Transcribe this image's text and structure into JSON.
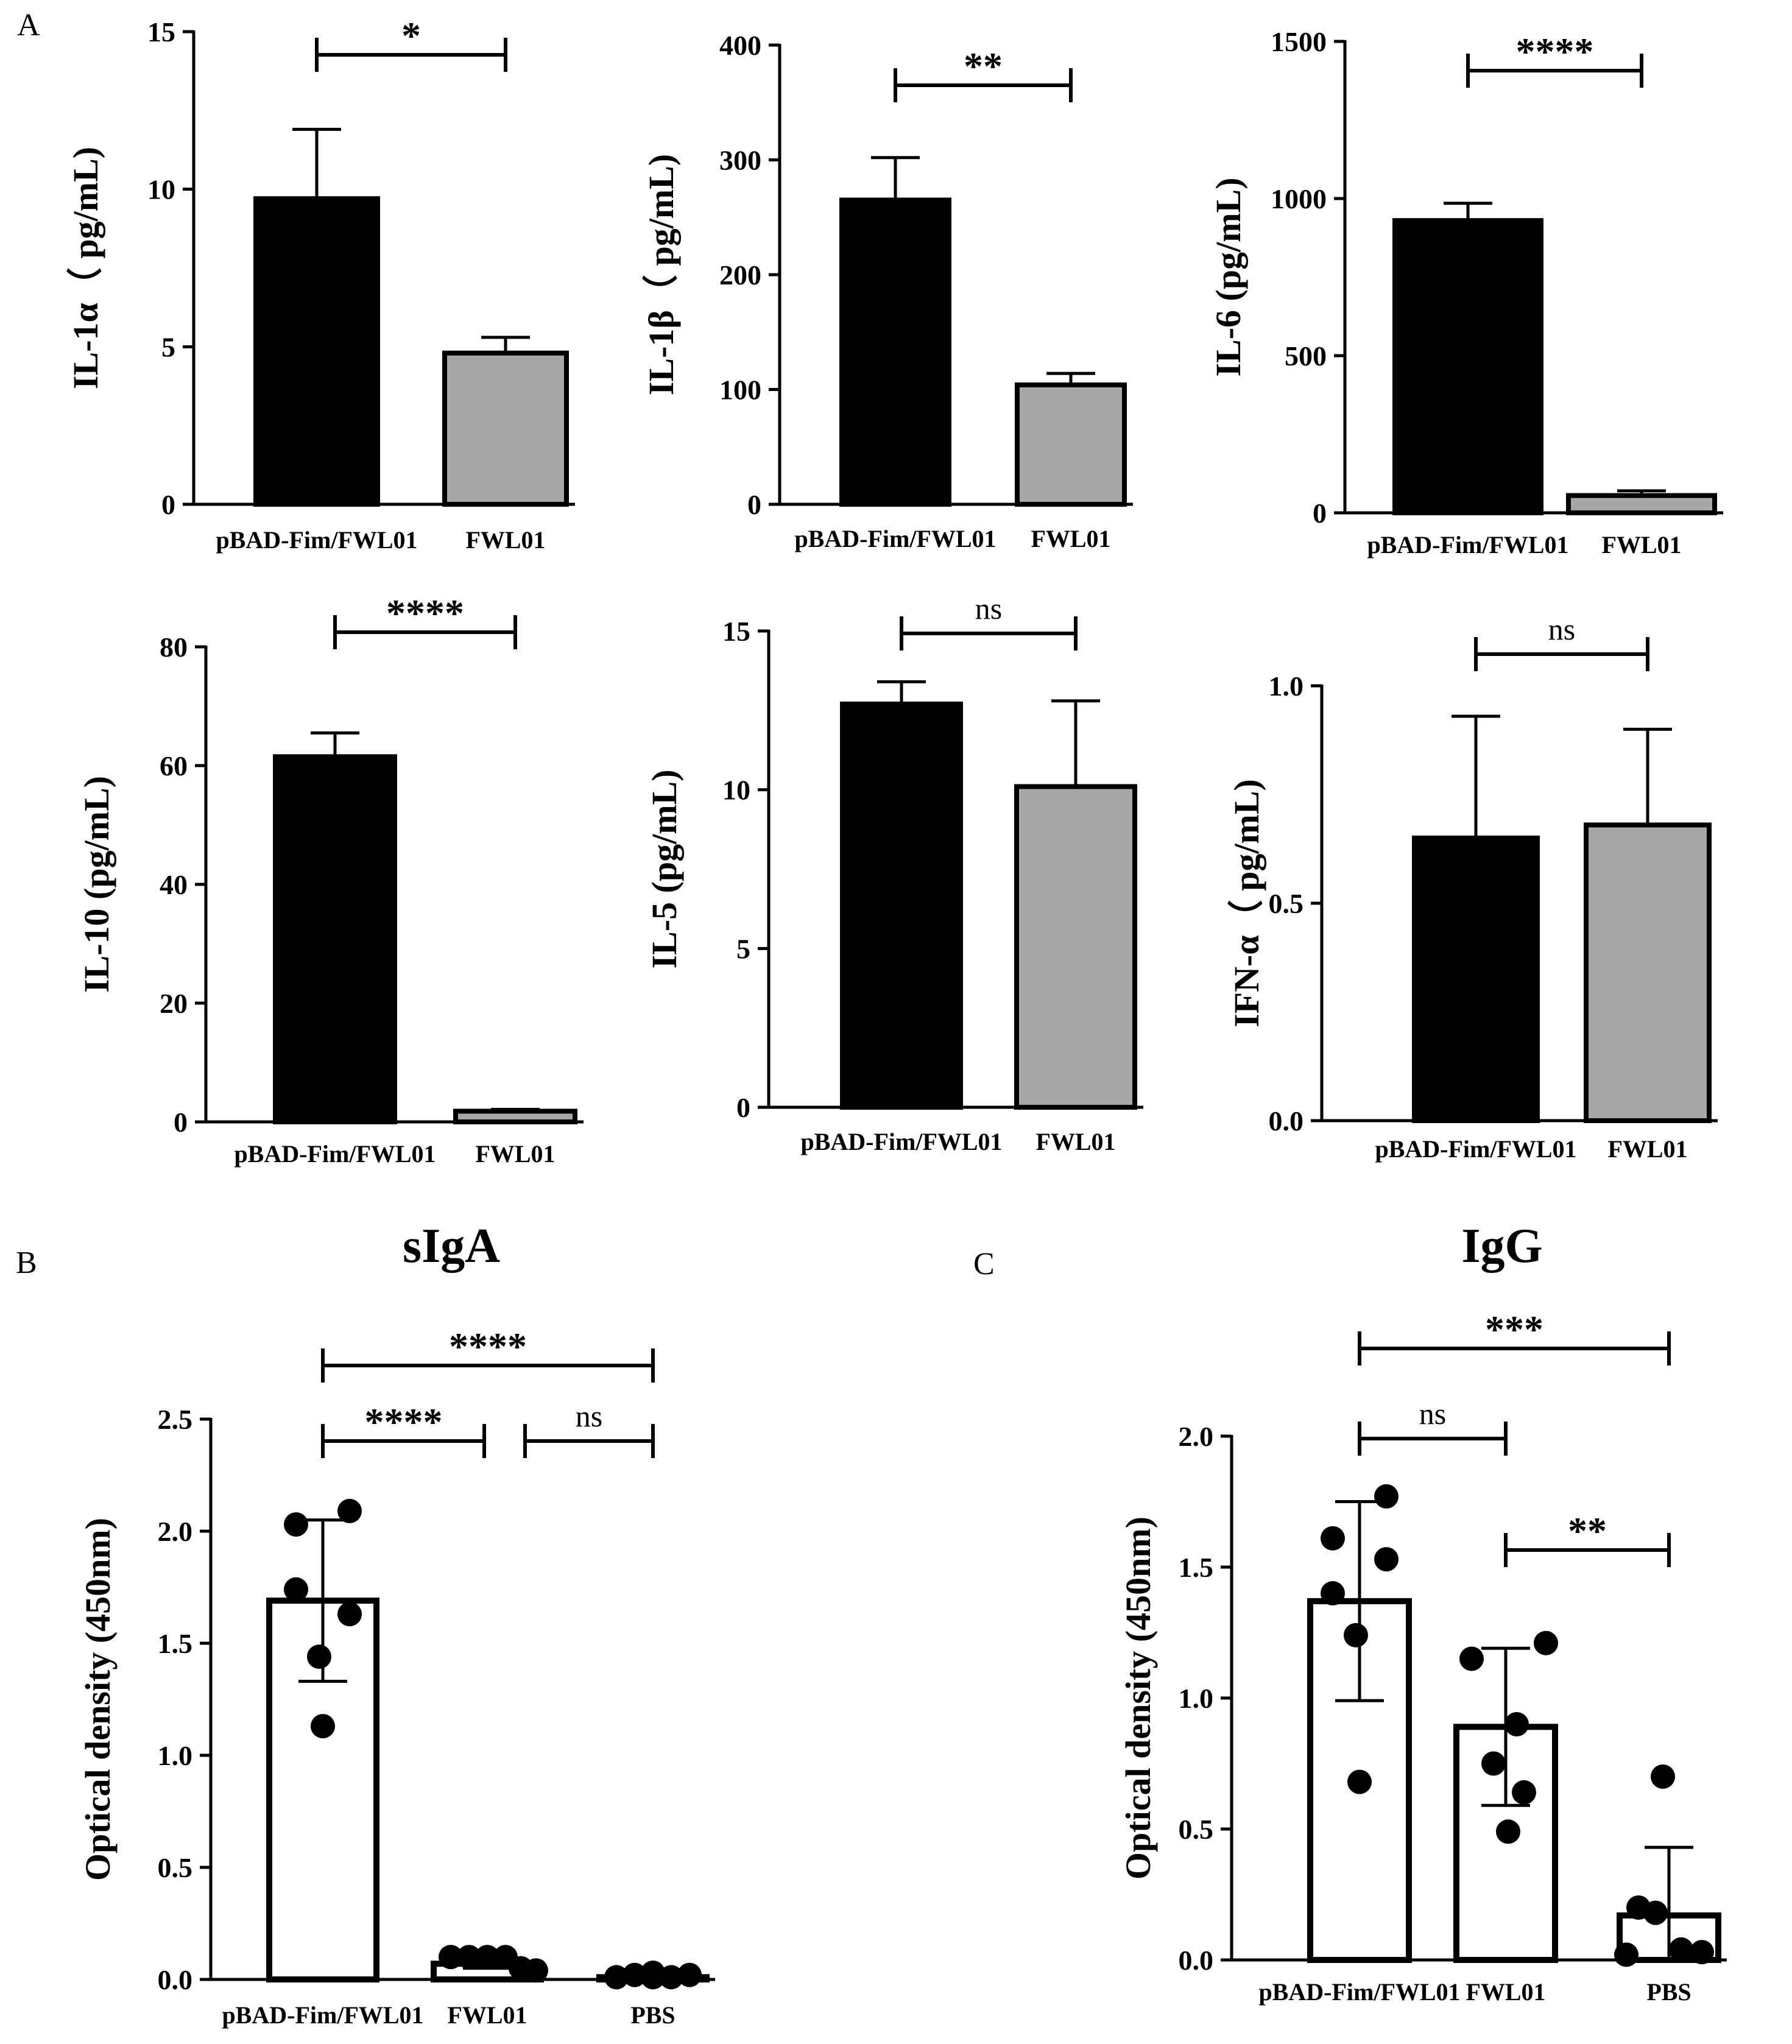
{
  "colors": {
    "dark": "#000000",
    "grey": "#a7a6a9",
    "white": "#ffffff"
  },
  "panel_labels": [
    "A",
    "B",
    "C"
  ],
  "chart_data": [
    {
      "type": "bar",
      "panel": "A",
      "ylabel": "IL-1α（ pg/mL)",
      "ylim": [
        0,
        15
      ],
      "ticks": [
        0,
        5,
        10,
        15
      ],
      "categories": [
        "pBAD-Fim/FWL01",
        "FWL01"
      ],
      "values": [
        9.7,
        4.8
      ],
      "errors": [
        2.2,
        0.5
      ],
      "fills": [
        "dark",
        "grey"
      ],
      "sig": [
        {
          "from": 0,
          "to": 1,
          "label": "*"
        }
      ]
    },
    {
      "type": "bar",
      "ylabel": "IL-1β（ pg/mL)",
      "ylim": [
        0,
        400
      ],
      "ticks": [
        0,
        100,
        200,
        300,
        400
      ],
      "categories": [
        "pBAD-Fim/FWL01",
        "FWL01"
      ],
      "values": [
        265,
        104
      ],
      "errors": [
        37,
        10
      ],
      "fills": [
        "dark",
        "grey"
      ],
      "sig": [
        {
          "from": 0,
          "to": 1,
          "label": "**"
        }
      ]
    },
    {
      "type": "bar",
      "ylabel": "IL-6 (pg/mL)",
      "ylim": [
        0,
        1500
      ],
      "ticks": [
        0,
        500,
        1000,
        1500
      ],
      "categories": [
        "pBAD-Fim/FWL01",
        "FWL01"
      ],
      "values": [
        930,
        55
      ],
      "errors": [
        55,
        15
      ],
      "fills": [
        "dark",
        "grey"
      ],
      "sig": [
        {
          "from": 0,
          "to": 1,
          "label": "****"
        }
      ]
    },
    {
      "type": "bar",
      "ylabel": "IL-10 (pg/mL)",
      "ylim": [
        0,
        80
      ],
      "ticks": [
        0,
        20,
        40,
        60,
        80
      ],
      "categories": [
        "pBAD-Fim/FWL01",
        "FWL01"
      ],
      "values": [
        61.5,
        1.8
      ],
      "errors": [
        4,
        0.3
      ],
      "fills": [
        "dark",
        "grey"
      ],
      "sig": [
        {
          "from": 0,
          "to": 1,
          "label": "****"
        }
      ]
    },
    {
      "type": "bar",
      "ylabel": "IL-5 (pg/mL)",
      "ylim": [
        0,
        15
      ],
      "ticks": [
        0,
        5,
        10,
        15
      ],
      "categories": [
        "pBAD-Fim/FWL01",
        "FWL01"
      ],
      "values": [
        12.7,
        10.1
      ],
      "errors": [
        0.7,
        2.7
      ],
      "fills": [
        "dark",
        "grey"
      ],
      "sig": [
        {
          "from": 0,
          "to": 1,
          "label": "ns"
        }
      ]
    },
    {
      "type": "bar",
      "ylabel": "IFN-α（ pg/mL)",
      "ylim": [
        0,
        1
      ],
      "ticks": [
        "0.0",
        "0.5",
        "1.0"
      ],
      "categories": [
        "pBAD-Fim/FWL01",
        "FWL01"
      ],
      "values": [
        0.65,
        0.68
      ],
      "errors": [
        0.28,
        0.22
      ],
      "fills": [
        "dark",
        "grey"
      ],
      "sig": [
        {
          "from": 0,
          "to": 1,
          "label": "ns"
        }
      ]
    },
    {
      "type": "bar",
      "panel": "B",
      "title": "sIgA",
      "ylabel": "Optical density (450nm)",
      "ylim": [
        0,
        2.5
      ],
      "ticks": [
        "0.0",
        "0.5",
        "1.0",
        "1.5",
        "2.0",
        "2.5"
      ],
      "categories": [
        "pBAD-Fim/FWL01",
        "FWL01",
        "PBS"
      ],
      "values": [
        1.69,
        0.07,
        0.01
      ],
      "errors": [
        0.36,
        0.02,
        0.01
      ],
      "fills": [
        "white",
        "white",
        "white"
      ],
      "points": [
        [
          2.09,
          2.03,
          1.63,
          1.74,
          1.44,
          1.13
        ],
        [
          0.1,
          0.1,
          0.1,
          0.1,
          0.05,
          0.04
        ],
        [
          0.01,
          0.02,
          0.03,
          0.01,
          0.02,
          0.01
        ]
      ],
      "sig": [
        {
          "from": 0,
          "to": 2,
          "label": "****"
        },
        {
          "from": 0,
          "to": 1,
          "label": "****"
        },
        {
          "from": 1,
          "to": 2,
          "label": "ns"
        }
      ]
    },
    {
      "type": "bar",
      "panel": "C",
      "title": "IgG",
      "ylabel": "Optical density (450nm)",
      "ylim": [
        0,
        2
      ],
      "ticks": [
        "0.0",
        "0.5",
        "1.0",
        "1.5",
        "2.0"
      ],
      "categories": [
        "pBAD-Fim/FWL01",
        "FWL01",
        "PBS"
      ],
      "values": [
        1.37,
        0.89,
        0.17
      ],
      "errors": [
        0.38,
        0.3,
        0.26
      ],
      "fills": [
        "white",
        "white",
        "white"
      ],
      "points": [
        [
          1.77,
          1.61,
          1.53,
          1.4,
          1.24,
          0.68
        ],
        [
          1.21,
          1.15,
          0.9,
          0.75,
          0.64,
          0.49
        ],
        [
          0.7,
          0.2,
          0.18,
          0.04,
          0.03,
          0.02
        ]
      ],
      "sig": [
        {
          "from": 0,
          "to": 2,
          "label": "***"
        },
        {
          "from": 0,
          "to": 1,
          "label": "ns"
        },
        {
          "from": 1,
          "to": 2,
          "label": "**"
        }
      ]
    }
  ]
}
